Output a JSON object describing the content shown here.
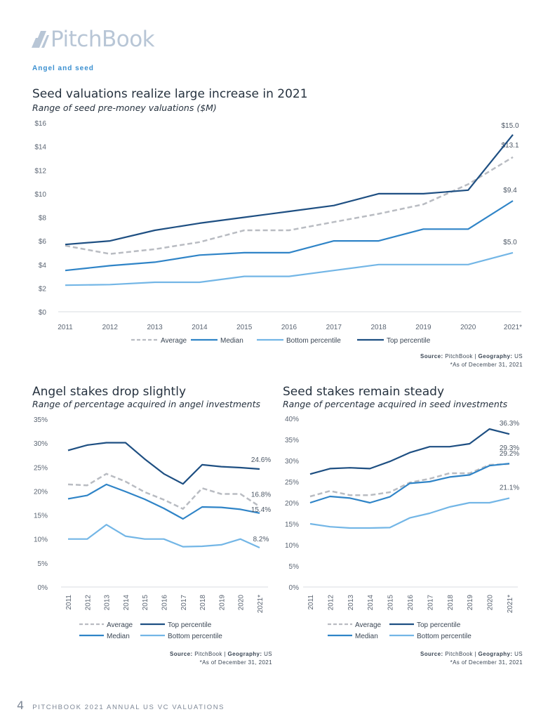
{
  "brand": {
    "logo_text": "PitchBook"
  },
  "section_label": "Angel and seed",
  "footer": {
    "page_number": "4",
    "title": "PITCHBOOK 2021 ANNUAL US VC VALUATIONS"
  },
  "colors": {
    "average": "#b9bcc2",
    "median": "#2f84c7",
    "bottom": "#73b6e6",
    "top": "#1e4f82",
    "accent": "#3a8fd0"
  },
  "charts": [
    {
      "title": "Seed valuations realize large increase in 2021",
      "subtitle": "Range of seed pre-money valuations ($M)",
      "source_label": "Source:",
      "source_value": "PitchBook",
      "geo_label": "Geography:",
      "geo_value": "US",
      "note": "*As of December 31, 2021"
    },
    {
      "title": "Angel stakes drop slightly",
      "subtitle": "Range of percentage acquired in angel investments",
      "source_label": "Source:",
      "source_value": "PitchBook",
      "geo_label": "Geography:",
      "geo_value": "US",
      "note": "*As of December 31, 2021"
    },
    {
      "title": "Seed stakes remain steady",
      "subtitle": "Range of percentage acquired in seed investments",
      "source_label": "Source:",
      "source_value": "PitchBook",
      "geo_label": "Geography:",
      "geo_value": "US",
      "note": "*As of December 31, 2021"
    }
  ],
  "chart_data": [
    {
      "type": "line",
      "title": "Seed valuations realize large increase in 2021",
      "subtitle": "Range of seed pre-money valuations ($M)",
      "xlabel": "",
      "ylabel": "",
      "categories": [
        "2011",
        "2012",
        "2013",
        "2014",
        "2015",
        "2016",
        "2017",
        "2018",
        "2019",
        "2020",
        "2021*"
      ],
      "ylim": [
        0,
        16
      ],
      "yticks": [
        0,
        2,
        4,
        6,
        8,
        10,
        12,
        14,
        16
      ],
      "ytick_labels": [
        "$0",
        "$2",
        "$4",
        "$6",
        "$8",
        "$10",
        "$12",
        "$14",
        "$16"
      ],
      "grid": false,
      "legend": "bottom",
      "series": [
        {
          "name": "Average",
          "key": "average",
          "dashed": true,
          "values": [
            5.6,
            4.9,
            5.3,
            5.9,
            6.9,
            6.9,
            7.6,
            8.3,
            9.1,
            10.8,
            13.1
          ],
          "end_label": "$13.1"
        },
        {
          "name": "Median",
          "key": "median",
          "values": [
            3.5,
            3.9,
            4.2,
            4.8,
            5.0,
            5.0,
            6.0,
            6.0,
            7.0,
            7.0,
            9.4
          ],
          "end_label": "$9.4"
        },
        {
          "name": "Bottom percentile",
          "key": "bottom",
          "values": [
            2.25,
            2.3,
            2.5,
            2.5,
            3.0,
            3.0,
            3.5,
            4.0,
            4.0,
            4.0,
            5.0
          ],
          "end_label": "$5.0"
        },
        {
          "name": "Top percentile",
          "key": "top",
          "values": [
            5.7,
            6.0,
            6.9,
            7.5,
            8.0,
            8.5,
            9.0,
            10.0,
            10.0,
            10.3,
            15.0
          ],
          "end_label": "$15.0"
        }
      ]
    },
    {
      "type": "line",
      "title": "Angel stakes drop slightly",
      "subtitle": "Range of percentage acquired in angel investments",
      "xlabel": "",
      "ylabel": "",
      "categories": [
        "2011",
        "2012",
        "2013",
        "2014",
        "2015",
        "2016",
        "2017",
        "2018",
        "2019",
        "2020",
        "2021*"
      ],
      "ylim": [
        0,
        35
      ],
      "yticks": [
        0,
        5,
        10,
        15,
        20,
        25,
        30,
        35
      ],
      "ytick_labels": [
        "0%",
        "5%",
        "10%",
        "15%",
        "20%",
        "25%",
        "30%",
        "35%"
      ],
      "grid": false,
      "legend": "bottom",
      "series": [
        {
          "name": "Average",
          "key": "average",
          "dashed": true,
          "values": [
            21.4,
            21.2,
            23.6,
            22.0,
            19.8,
            18.2,
            16.3,
            20.6,
            19.4,
            19.4,
            16.8
          ],
          "end_label": "16.8%"
        },
        {
          "name": "Top percentile",
          "key": "top",
          "values": [
            28.5,
            29.6,
            30.1,
            30.1,
            26.7,
            23.6,
            21.5,
            25.5,
            25.1,
            24.9,
            24.6
          ],
          "end_label": "24.6%"
        },
        {
          "name": "Median",
          "key": "median",
          "values": [
            18.4,
            19.1,
            21.4,
            19.9,
            18.3,
            16.4,
            14.2,
            16.7,
            16.6,
            16.2,
            15.4
          ],
          "end_label": "15.4%"
        },
        {
          "name": "Bottom percentile",
          "key": "bottom",
          "values": [
            10.0,
            10.0,
            13.0,
            10.6,
            10.0,
            10.0,
            8.4,
            8.5,
            8.8,
            10.0,
            8.2
          ],
          "end_label": "8.2%"
        }
      ]
    },
    {
      "type": "line",
      "title": "Seed stakes remain steady",
      "subtitle": "Range of percentage acquired in seed investments",
      "xlabel": "",
      "ylabel": "",
      "categories": [
        "2011",
        "2012",
        "2013",
        "2014",
        "2015",
        "2016",
        "2017",
        "2018",
        "2019",
        "2020",
        "2021*"
      ],
      "ylim": [
        0,
        40
      ],
      "yticks": [
        0,
        5,
        10,
        15,
        20,
        25,
        30,
        35,
        40
      ],
      "ytick_labels": [
        "0%",
        "5%",
        "10%",
        "15%",
        "20%",
        "25%",
        "30%",
        "35%",
        "40%"
      ],
      "grid": false,
      "legend": "bottom",
      "series": [
        {
          "name": "Average",
          "key": "average",
          "dashed": true,
          "values": [
            21.5,
            22.8,
            21.8,
            21.8,
            22.5,
            24.8,
            25.7,
            27.0,
            27.0,
            29.0,
            29.2
          ],
          "end_label": "29.2%"
        },
        {
          "name": "Top percentile",
          "key": "top",
          "values": [
            26.8,
            28.1,
            28.3,
            28.1,
            29.8,
            31.9,
            33.3,
            33.3,
            34.0,
            37.5,
            36.3
          ],
          "end_label": "36.3%"
        },
        {
          "name": "Median",
          "key": "median",
          "values": [
            20.0,
            21.5,
            21.1,
            20.0,
            21.4,
            24.6,
            25.0,
            26.1,
            26.6,
            28.8,
            29.3
          ],
          "end_label": "29.3%"
        },
        {
          "name": "Bottom percentile",
          "key": "bottom",
          "values": [
            15.0,
            14.3,
            14.0,
            14.0,
            14.1,
            16.4,
            17.5,
            19.0,
            20.0,
            20.0,
            21.1
          ],
          "end_label": "21.1%"
        }
      ]
    }
  ]
}
